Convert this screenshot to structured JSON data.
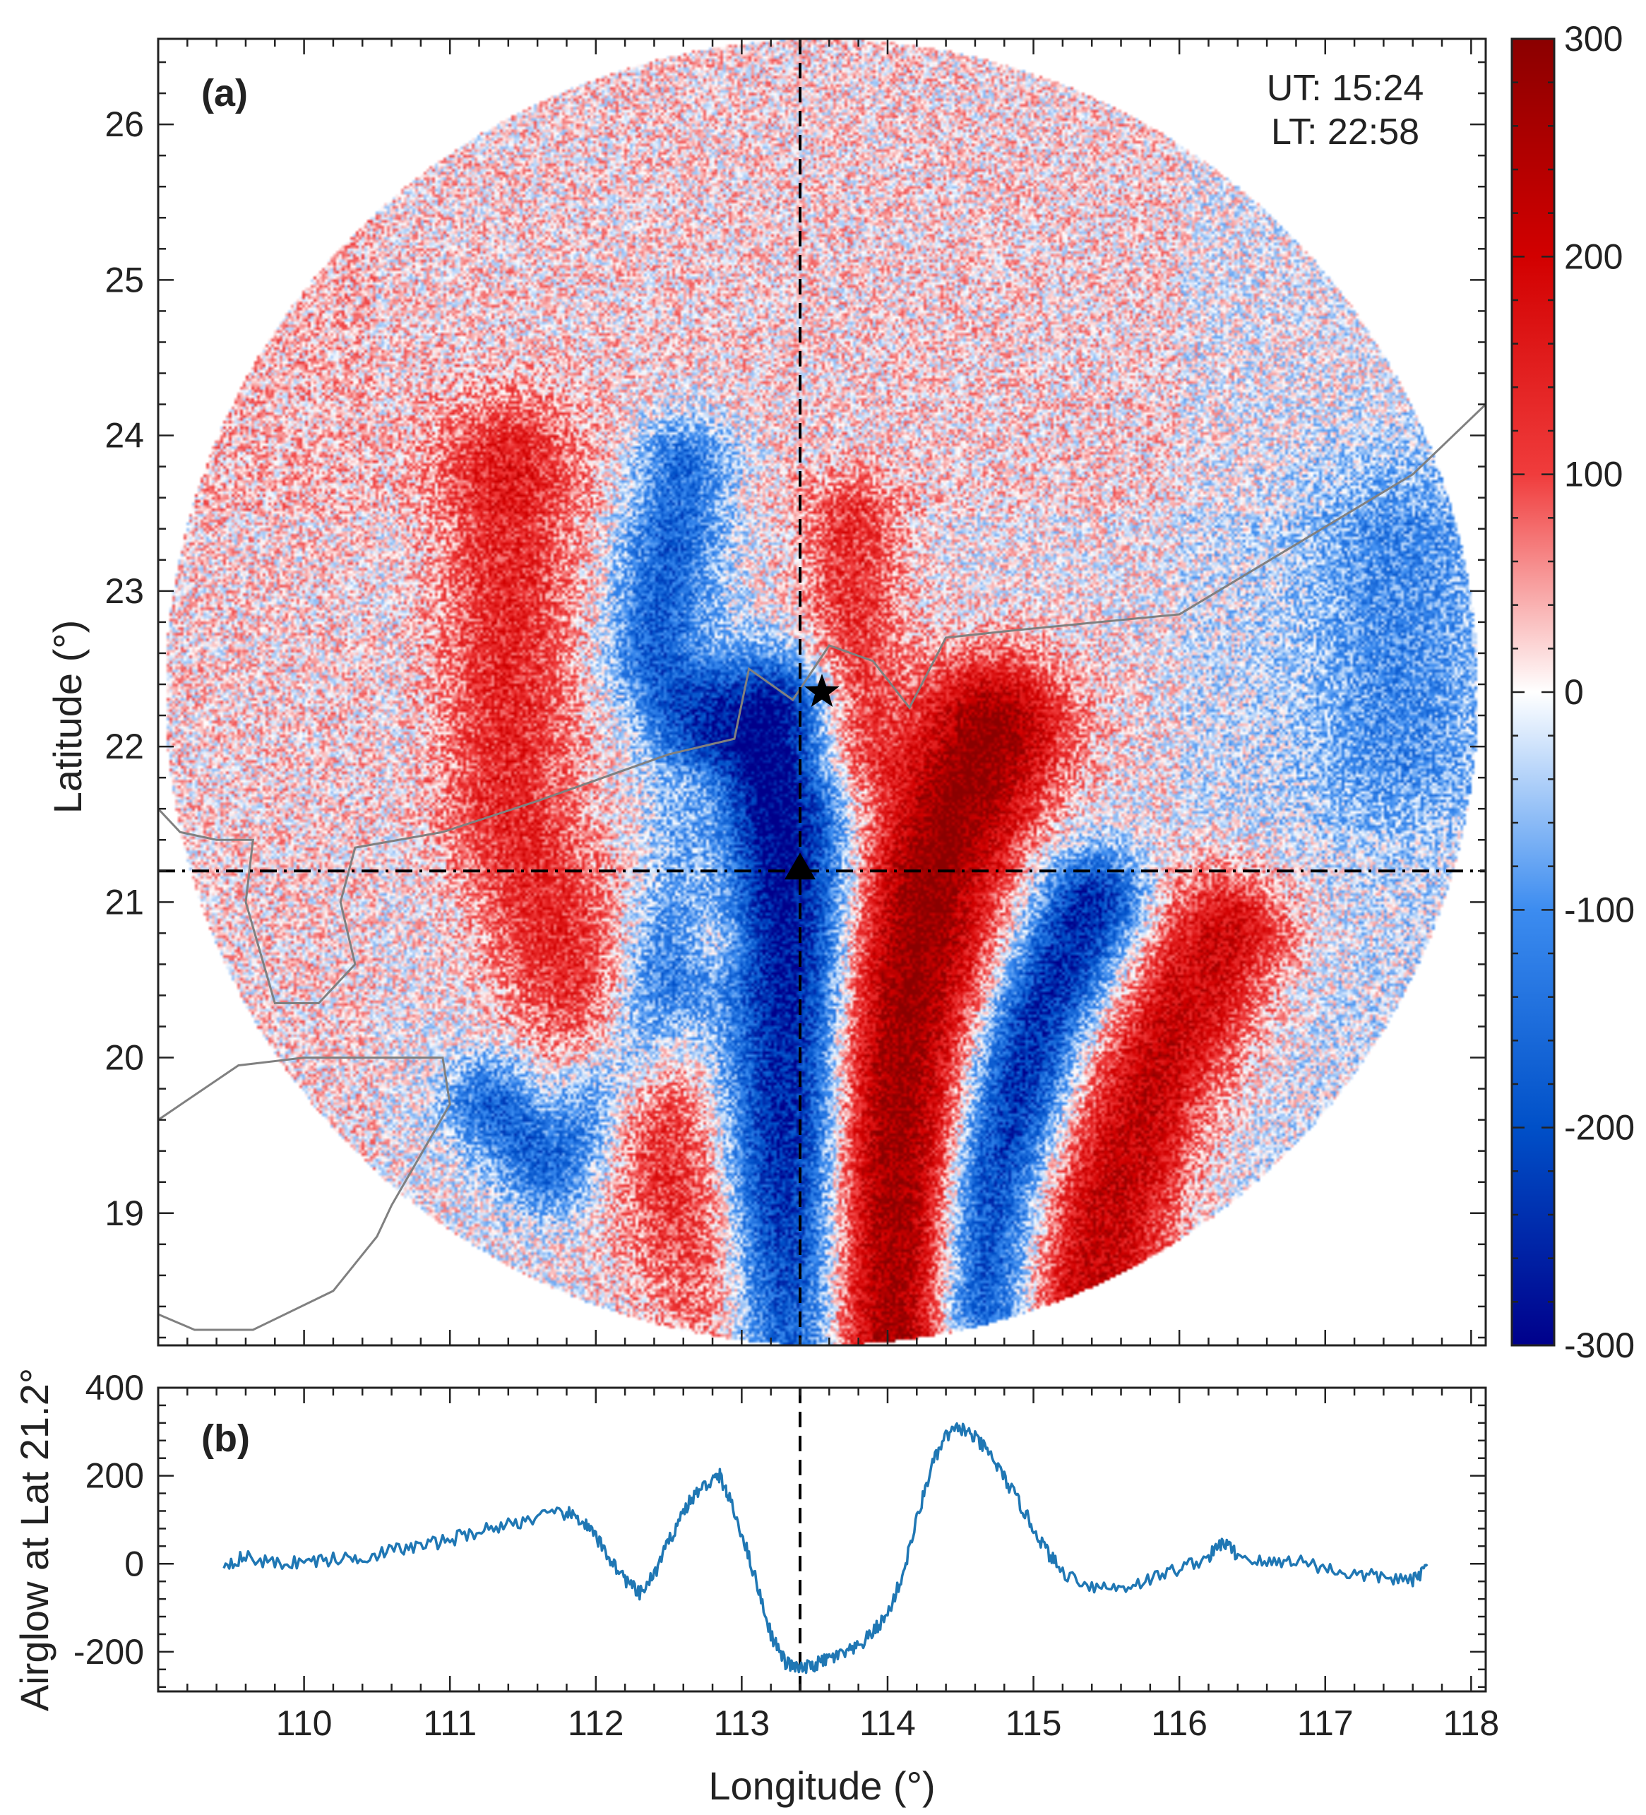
{
  "chart_data": [
    {
      "panel": "(a)",
      "type": "heatmap",
      "xlabel": "Longitude (°)",
      "ylabel": "Latitude (°)",
      "xlim": [
        109.0,
        118.1
      ],
      "ylim": [
        18.15,
        26.55
      ],
      "xticks": [
        110,
        111,
        112,
        113,
        114,
        115,
        116,
        117,
        118
      ],
      "yticks": [
        19,
        20,
        21,
        22,
        23,
        24,
        25,
        26
      ],
      "ut_label": "UT: 15:24",
      "lt_label": "LT: 22:58",
      "image_center": {
        "lon": 113.55,
        "lat": 22.35
      },
      "image_radius_lon": 4.5,
      "image_radius_lat": 4.2,
      "marker_star": {
        "lon": 113.55,
        "lat": 22.35
      },
      "marker_triangle": {
        "lon": 113.4,
        "lat": 21.2
      },
      "dashed_longitude": 113.4,
      "dashdot_latitude": 21.2,
      "colorbar": {
        "min": -300,
        "max": 300,
        "ticks": [
          300,
          200,
          100,
          0,
          -100,
          -200,
          -300
        ],
        "tick_labels": [
          "300",
          "200",
          "100",
          "0",
          "-100",
          "-200",
          "-300"
        ],
        "colors": [
          "#00008b",
          "#0050c8",
          "#3c8cf0",
          "#ffffff",
          "#f03c3c",
          "#d20000",
          "#8b0000"
        ]
      },
      "coastline": [
        [
          [
            109.0,
            21.6
          ],
          [
            109.15,
            21.45
          ],
          [
            109.4,
            21.4
          ],
          [
            109.65,
            21.4
          ],
          [
            109.6,
            21.0
          ],
          [
            109.8,
            20.35
          ],
          [
            110.1,
            20.35
          ],
          [
            110.35,
            20.6
          ],
          [
            110.25,
            21.0
          ],
          [
            110.35,
            21.35
          ],
          [
            110.95,
            21.45
          ],
          [
            111.6,
            21.65
          ],
          [
            112.5,
            21.95
          ],
          [
            112.95,
            22.05
          ],
          [
            113.05,
            22.5
          ],
          [
            113.35,
            22.3
          ],
          [
            113.6,
            22.65
          ],
          [
            113.9,
            22.55
          ],
          [
            114.15,
            22.25
          ],
          [
            114.4,
            22.7
          ],
          [
            114.9,
            22.75
          ],
          [
            116.0,
            22.85
          ],
          [
            117.6,
            23.75
          ],
          [
            118.1,
            24.2
          ]
        ],
        [
          [
            109.0,
            19.6
          ],
          [
            109.55,
            19.95
          ],
          [
            110.0,
            20.0
          ],
          [
            110.3,
            20.0
          ],
          [
            110.95,
            20.0
          ],
          [
            111.0,
            19.7
          ],
          [
            110.6,
            19.05
          ],
          [
            110.5,
            18.85
          ],
          [
            110.2,
            18.5
          ],
          [
            109.65,
            18.25
          ],
          [
            109.25,
            18.25
          ],
          [
            109.0,
            18.35
          ]
        ]
      ],
      "bands": [
        {
          "sign": 1,
          "amp": 140,
          "pts": [
            [
              111.4,
              23.8
            ],
            [
              111.4,
              21.6
            ],
            [
              111.8,
              20.6
            ],
            [
              112.4,
              19.6
            ],
            [
              112.8,
              18.7
            ],
            [
              113.0,
              18.2
            ]
          ],
          "w": 0.4
        },
        {
          "sign": 1,
          "amp": 160,
          "pts": [
            [
              112.8,
              21.7
            ],
            [
              112.8,
              20.8
            ]
          ],
          "w": 0.22
        },
        {
          "sign": -1,
          "amp": 170,
          "pts": [
            [
              112.6,
              23.8
            ],
            [
              112.4,
              22.6
            ],
            [
              112.8,
              21.8
            ],
            [
              112.7,
              21.0
            ],
            [
              112.2,
              20.0
            ],
            [
              111.7,
              19.3
            ],
            [
              111.3,
              19.7
            ]
          ],
          "w": 0.28
        },
        {
          "sign": -1,
          "amp": 300,
          "pts": [
            [
              113.2,
              22.2
            ],
            [
              113.3,
              21.4
            ],
            [
              113.35,
              20.2
            ],
            [
              113.3,
              19.2
            ],
            [
              113.3,
              18.2
            ]
          ],
          "w": 0.36
        },
        {
          "sign": 1,
          "amp": 130,
          "pts": [
            [
              113.75,
              23.4
            ],
            [
              113.75,
              22.0
            ]
          ],
          "w": 0.28
        },
        {
          "sign": 1,
          "amp": 300,
          "pts": [
            [
              114.7,
              22.1
            ],
            [
              114.3,
              21.2
            ],
            [
              114.05,
              20.0
            ],
            [
              114.05,
              19.0
            ],
            [
              114.05,
              18.2
            ]
          ],
          "w": 0.42
        },
        {
          "sign": -1,
          "amp": 260,
          "pts": [
            [
              115.4,
              21.0
            ],
            [
              115.0,
              20.2
            ],
            [
              114.7,
              19.2
            ],
            [
              114.6,
              18.4
            ]
          ],
          "w": 0.3
        },
        {
          "sign": 1,
          "amp": 220,
          "pts": [
            [
              116.3,
              20.8
            ],
            [
              115.8,
              19.8
            ],
            [
              115.5,
              19.0
            ],
            [
              115.4,
              18.5
            ]
          ],
          "w": 0.38
        },
        {
          "sign": -1,
          "amp": 90,
          "pts": [
            [
              117.5,
              23.4
            ],
            [
              117.5,
              22.0
            ]
          ],
          "w": 0.5
        }
      ]
    },
    {
      "panel": "(b)",
      "type": "line",
      "xlabel": "Longitude (°)",
      "ylabel": "Airglow at Lat 21.2°",
      "xlim": [
        109.0,
        118.1
      ],
      "ylim": [
        -290,
        400
      ],
      "xticks": [
        110,
        111,
        112,
        113,
        114,
        115,
        116,
        117,
        118
      ],
      "yticks": [
        400,
        200,
        0,
        -200
      ],
      "line_color": "#1f77b4",
      "dashed_longitude": 113.4,
      "series": [
        {
          "name": "Airglow at Lat 21.2°",
          "x": [
            109.45,
            109.6,
            109.8,
            110.0,
            110.2,
            110.4,
            110.6,
            110.8,
            111.0,
            111.2,
            111.4,
            111.6,
            111.8,
            111.9,
            112.0,
            112.1,
            112.2,
            112.3,
            112.4,
            112.5,
            112.6,
            112.7,
            112.8,
            112.85,
            112.9,
            113.0,
            113.1,
            113.2,
            113.3,
            113.4,
            113.5,
            113.6,
            113.7,
            113.8,
            113.9,
            114.0,
            114.1,
            114.2,
            114.3,
            114.4,
            114.5,
            114.6,
            114.7,
            114.8,
            114.9,
            115.0,
            115.1,
            115.2,
            115.4,
            115.6,
            115.8,
            116.0,
            116.2,
            116.3,
            116.4,
            116.6,
            116.8,
            117.0,
            117.2,
            117.4,
            117.6,
            117.7
          ],
          "values": [
            0,
            15,
            0,
            5,
            10,
            15,
            30,
            40,
            55,
            75,
            90,
            105,
            115,
            100,
            60,
            10,
            -35,
            -70,
            -25,
            50,
            120,
            165,
            190,
            200,
            160,
            70,
            -40,
            -160,
            -225,
            -240,
            -230,
            -215,
            -205,
            -190,
            -155,
            -115,
            -30,
            100,
            220,
            290,
            310,
            285,
            250,
            195,
            140,
            80,
            25,
            -20,
            -50,
            -55,
            -35,
            -10,
            15,
            50,
            20,
            0,
            10,
            -10,
            -25,
            -30,
            -40,
            -5
          ]
        }
      ]
    }
  ]
}
